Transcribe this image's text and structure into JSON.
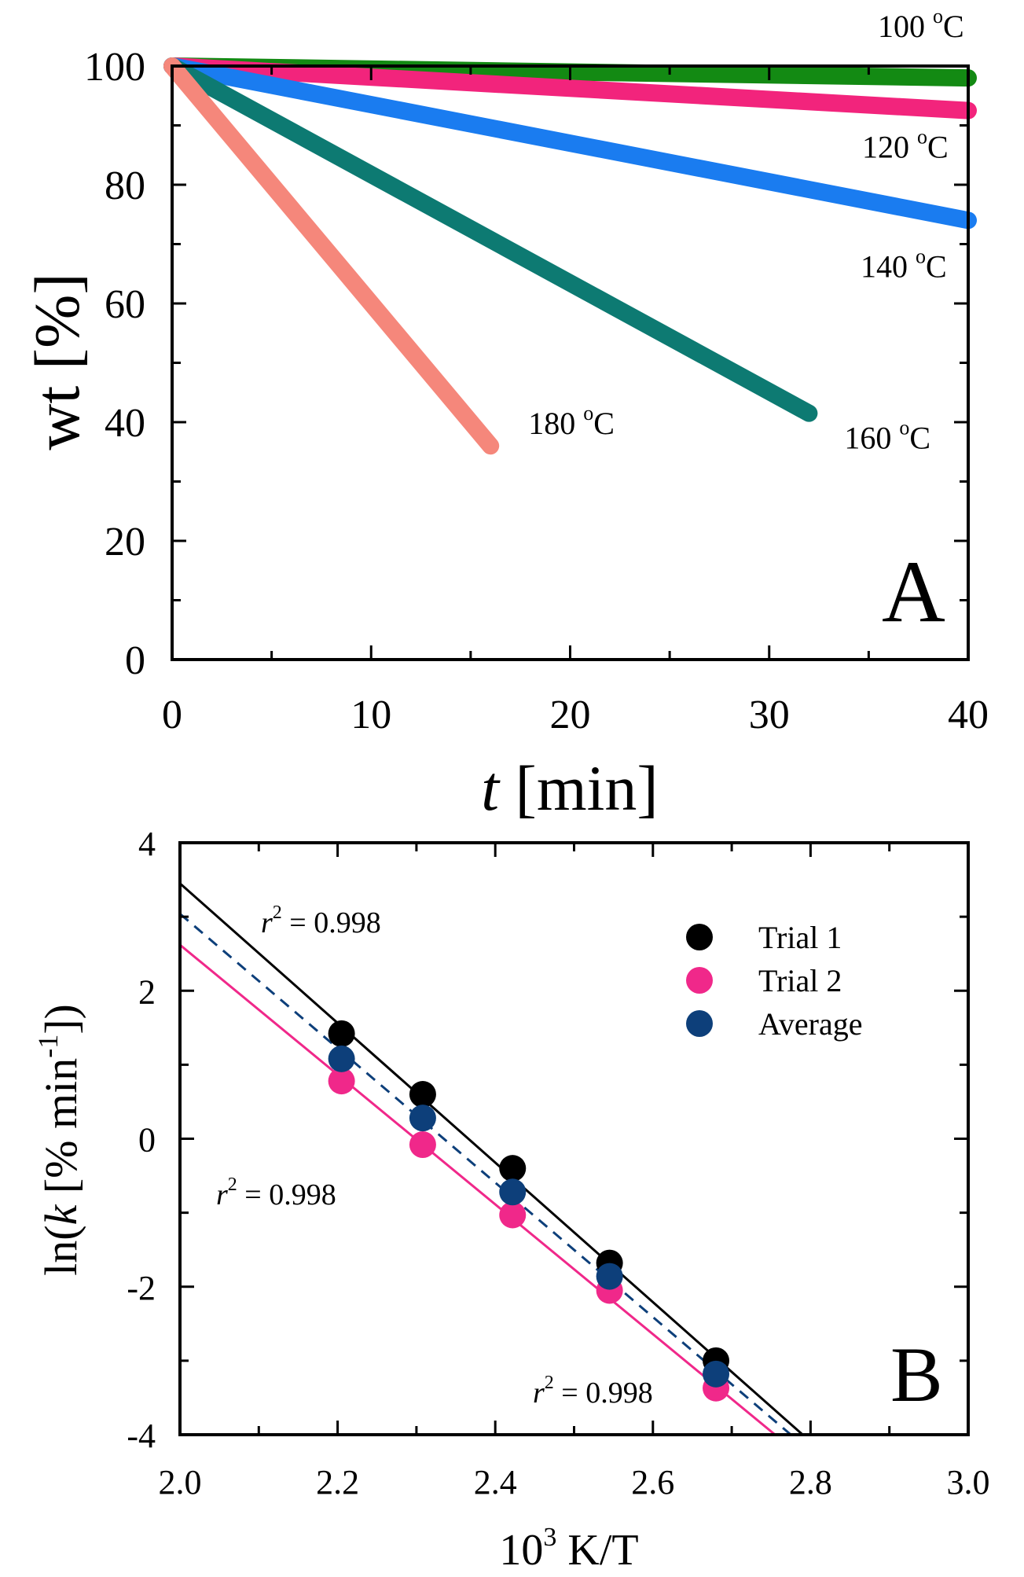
{
  "chart_data": [
    {
      "panel": "A",
      "type": "line",
      "xlabel_italic": "t",
      "xlabel_rest": " [min]",
      "ylabel": "wt [%]",
      "xlim": [
        0,
        40
      ],
      "ylim": [
        0,
        100
      ],
      "xticks": [
        "0",
        "10",
        "20",
        "30",
        "40"
      ],
      "yticks": [
        "0",
        "20",
        "40",
        "60",
        "80",
        "100"
      ],
      "panel_label": "A",
      "series": [
        {
          "name": "100 oC",
          "label_main": "100 ",
          "label_sup": "o",
          "label_unit": "C",
          "color": "#138a13",
          "x": [
            0,
            40
          ],
          "y": [
            100,
            98
          ]
        },
        {
          "name": "120 oC",
          "label_main": "120 ",
          "label_sup": "o",
          "label_unit": "C",
          "color": "#f2247c",
          "x": [
            0,
            40
          ],
          "y": [
            100,
            92.5
          ]
        },
        {
          "name": "140 oC",
          "label_main": "140 ",
          "label_sup": "o",
          "label_unit": "C",
          "color": "#1a7cf0",
          "x": [
            0,
            40
          ],
          "y": [
            100,
            74
          ]
        },
        {
          "name": "160 oC",
          "label_main": "160 ",
          "label_sup": "o",
          "label_unit": "C",
          "color": "#0d7a72",
          "x": [
            0,
            32
          ],
          "y": [
            100,
            41.5
          ]
        },
        {
          "name": "180 oC",
          "label_main": "180 ",
          "label_sup": "o",
          "label_unit": "C",
          "color": "#f5877b",
          "x": [
            0,
            16
          ],
          "y": [
            100,
            36
          ]
        }
      ]
    },
    {
      "panel": "B",
      "type": "scatter",
      "xlabel_main": "10",
      "xlabel_sup": "3",
      "xlabel_rest": " K/T",
      "ylabel_prefix": "ln(",
      "ylabel_italic": "k",
      "ylabel_mid": " [% min",
      "ylabel_sup": "-1",
      "ylabel_end": "])",
      "xlim": [
        2.0,
        3.0
      ],
      "ylim": [
        -4,
        4
      ],
      "xticks": [
        "2.0",
        "2.2",
        "2.4",
        "2.6",
        "2.8",
        "3.0"
      ],
      "yticks": [
        "-4",
        "-2",
        "0",
        "2",
        "4"
      ],
      "panel_label": "B",
      "legend_position": "top-right",
      "x": [
        2.205,
        2.308,
        2.422,
        2.545,
        2.68
      ],
      "series": [
        {
          "name": "Trial 1",
          "color": "#000000",
          "values": [
            1.42,
            0.6,
            -0.4,
            -1.68,
            -3.0
          ],
          "fit": {
            "x": [
              2.0,
              2.79
            ],
            "y": [
              3.45,
              -4.0
            ],
            "dash": false
          }
        },
        {
          "name": "Trial 2",
          "color": "#f0288a",
          "values": [
            0.78,
            -0.08,
            -1.03,
            -2.05,
            -3.37
          ],
          "fit": {
            "x": [
              2.0,
              2.755
            ],
            "y": [
              2.62,
              -4.0
            ],
            "dash": false
          }
        },
        {
          "name": "Average",
          "color": "#0d3f7a",
          "values": [
            1.08,
            0.28,
            -0.72,
            -1.86,
            -3.18
          ],
          "fit": {
            "x": [
              2.0,
              2.775
            ],
            "y": [
              3.04,
              -4.0
            ],
            "dash": true
          }
        }
      ],
      "annotations": [
        {
          "sym": "r",
          "sup": "2",
          "text": " = 0.998",
          "color": "#000000"
        },
        {
          "sym": "r",
          "sup": "2",
          "text": " = 0.998",
          "color": "#0d3f7a"
        },
        {
          "sym": "r",
          "sup": "2",
          "text": " = 0.998",
          "color": "#f0288a"
        }
      ]
    }
  ]
}
